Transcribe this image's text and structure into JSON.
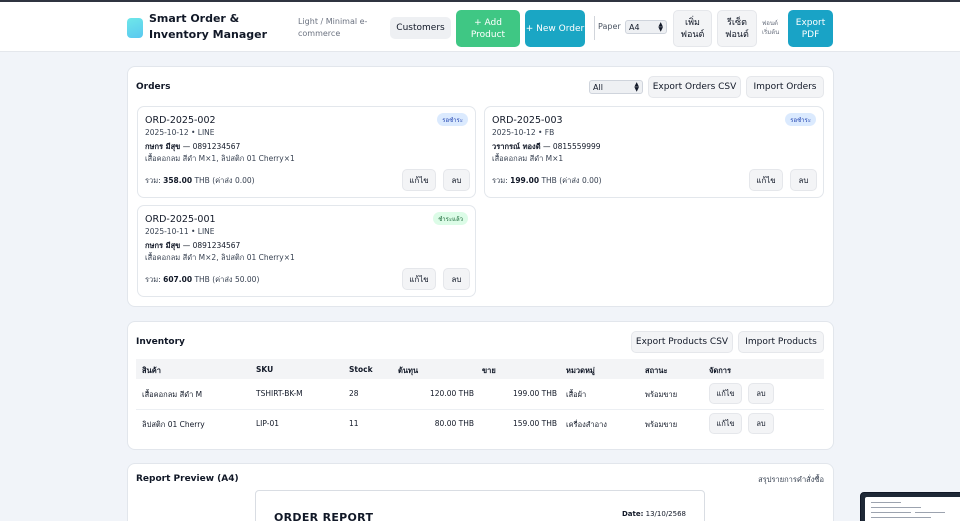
{
  "header": {
    "app_title": "Smart Order & Inventory Manager",
    "theme_label": "Light / Minimal e-commerce",
    "customers_btn": "Customers",
    "add_product_btn": "+ Add Product",
    "new_order_btn": "+ New Order",
    "paper_label": "Paper",
    "paper_value": "A4",
    "add_font_btn": "เพิ่มฟอนต์",
    "reset_font_btn": "รีเซ็ตฟอนต์",
    "font_default_label": "ฟอนต์เริ่มต้น",
    "export_pdf_btn": "Export PDF"
  },
  "orders": {
    "title": "Orders",
    "filter_value": "All",
    "export_csv_btn": "Export Orders CSV",
    "import_btn": "Import Orders",
    "edit_label": "แก้ไข",
    "delete_label": "ลบ",
    "total_prefix": "รวม:",
    "list": [
      {
        "id": "ORD-2025-002",
        "meta": "2025-10-12 • LINE",
        "customer": "กษกร มีสุข",
        "phone": "— 0891234567",
        "items": "เสื้อคอกลม สีดำ M×1, ลิปสติก 01 Cherry×1",
        "total": "358.00",
        "total_suffix": "THB (ค่าส่ง 0.00)",
        "status": "รอชำระ"
      },
      {
        "id": "ORD-2025-003",
        "meta": "2025-10-12 • FB",
        "customer": "วรากรณ์ ทองดี",
        "phone": "— 0815559999",
        "items": "เสื้อคอกลม สีดำ M×1",
        "total": "199.00",
        "total_suffix": "THB (ค่าส่ง 0.00)",
        "status": "รอชำระ"
      },
      {
        "id": "ORD-2025-001",
        "meta": "2025-10-11 • LINE",
        "customer": "กษกร มีสุข",
        "phone": "— 0891234567",
        "items": "เสื้อคอกลม สีดำ M×2, ลิปสติก 01 Cherry×1",
        "total": "607.00",
        "total_suffix": "THB (ค่าส่ง 50.00)",
        "status": "ชำระแล้ว"
      }
    ]
  },
  "inventory": {
    "title": "Inventory",
    "export_csv_btn": "Export Products CSV",
    "import_btn": "Import Products",
    "columns": [
      "สินค้า",
      "SKU",
      "Stock",
      "ต้นทุน",
      "ขาย",
      "หมวดหมู่",
      "สถานะ",
      "จัดการ"
    ],
    "edit_label": "แก้ไข",
    "delete_label": "ลบ",
    "rows": [
      {
        "name": "เสื้อคอกลม สีดำ M",
        "sku": "TSHIRT-BK-M",
        "stock": "28",
        "cost": "120.00 THB",
        "price": "199.00 THB",
        "category": "เสื้อผ้า",
        "status": "พร้อมขาย"
      },
      {
        "name": "ลิปสติก 01 Cherry",
        "sku": "LIP-01",
        "stock": "11",
        "cost": "80.00 THB",
        "price": "159.00 THB",
        "category": "เครื่องสำอาง",
        "status": "พร้อมขาย"
      }
    ]
  },
  "report": {
    "title": "Report Preview (A4)",
    "summary_link": "สรุปรายการคำสั่งซื้อ",
    "doc_title": "ORDER REPORT",
    "date_label": "Date:",
    "date_value": "13/10/2568"
  },
  "colors": {
    "green": "#3fc784",
    "teal": "#1aa6c4",
    "badge_pending": "#dbeafe",
    "badge_paid": "#dcfce7"
  }
}
